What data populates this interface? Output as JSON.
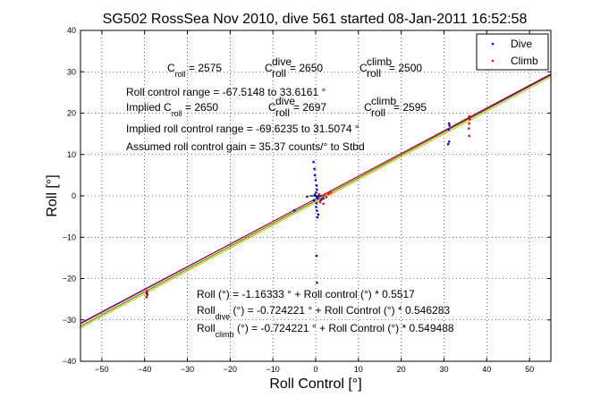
{
  "chart_data": {
    "type": "scatter",
    "title": "SG502 RossSea Nov 2010, dive 561 started 08-Jan-2011 16:52:58",
    "xlabel": "Roll Control [°]",
    "ylabel": "Roll [°]",
    "xlim": [
      -55,
      55
    ],
    "ylim": [
      -40,
      40
    ],
    "xticks": [
      -50,
      -40,
      -30,
      -20,
      -10,
      0,
      10,
      20,
      30,
      40,
      50
    ],
    "yticks": [
      -40,
      -30,
      -20,
      -10,
      0,
      10,
      20,
      30,
      40
    ],
    "grid": true,
    "legend_placement": "top-right",
    "series": [
      {
        "name": "Dive",
        "color": "#0000ff",
        "marker": "dot",
        "points": [
          [
            -39.5,
            -23.5
          ],
          [
            -39.4,
            -23.8
          ],
          [
            -0.5,
            8.2
          ],
          [
            -0.3,
            6.5
          ],
          [
            -0.2,
            5.0
          ],
          [
            0.0,
            3.8
          ],
          [
            0.2,
            2.5
          ],
          [
            0.3,
            1.5
          ],
          [
            0.1,
            0.8
          ],
          [
            -0.2,
            0.3
          ],
          [
            0.0,
            0.0
          ],
          [
            0.3,
            -0.3
          ],
          [
            0.5,
            -0.6
          ],
          [
            -0.4,
            -1.1
          ],
          [
            0.2,
            -1.8
          ],
          [
            0.1,
            -2.7
          ],
          [
            0.3,
            -3.6
          ],
          [
            0.6,
            -4.5
          ],
          [
            0.4,
            -5.2
          ],
          [
            0.2,
            -14.5
          ],
          [
            0.3,
            -21.0
          ],
          [
            1.2,
            -1.0
          ],
          [
            1.8,
            -0.6
          ],
          [
            -2.0,
            -0.2
          ],
          [
            -5.0,
            -3.5
          ],
          [
            31.0,
            12.5
          ],
          [
            31.2,
            13.1
          ],
          [
            31.1,
            16.0
          ],
          [
            31.3,
            17.0
          ],
          [
            31.2,
            17.5
          ]
        ]
      },
      {
        "name": "Climb",
        "color": "#ff0000",
        "marker": "dot",
        "points": [
          [
            -39.6,
            -24.5
          ],
          [
            -39.4,
            -24.0
          ],
          [
            -39.5,
            -23.0
          ],
          [
            1.0,
            -1.5
          ],
          [
            1.5,
            -0.8
          ],
          [
            2.0,
            0.2
          ],
          [
            2.5,
            -0.3
          ],
          [
            3.0,
            0.5
          ],
          [
            1.8,
            -1.9
          ],
          [
            0.8,
            0.4
          ],
          [
            3.5,
            0.8
          ],
          [
            35.8,
            16.3
          ],
          [
            35.9,
            17.5
          ],
          [
            36.0,
            18.5
          ],
          [
            35.9,
            19.2
          ],
          [
            35.9,
            14.5
          ]
        ]
      }
    ],
    "fit_lines": [
      {
        "label": "overall",
        "color": "#00aa00",
        "intercept": -1.16333,
        "slope": 0.5517
      },
      {
        "label": "dive",
        "color": "#0000ff",
        "intercept": -0.724221,
        "slope": 0.546283
      },
      {
        "label": "climb",
        "color": "#ff0000",
        "intercept": -0.724221,
        "slope": 0.549488
      },
      {
        "label": "center",
        "color": "#ffaa00",
        "intercept": -1.6,
        "slope": 0.5517
      }
    ],
    "annotations": {
      "c_roll": "C",
      "c_roll_sub": "roll",
      "c_roll_val": " = 2575",
      "c_dive": "C",
      "c_dive_sup": "dive",
      "c_dive_sub": "roll",
      "c_dive_val": " = 2650",
      "c_climb": "C",
      "c_climb_sup": "climb",
      "c_climb_sub": "roll",
      "c_climb_val": " = 2500",
      "range_line": "Roll control range = -67.5148 to 33.6161 °",
      "implied_c": "Implied C",
      "implied_c_sub": "roll",
      "implied_c_val": " = 2650",
      "implied_dive": "C",
      "implied_dive_sup": "dive",
      "implied_dive_sub": "roll",
      "implied_dive_val": " = 2697",
      "implied_climb": "C",
      "implied_climb_sup": "climb",
      "implied_climb_sub": "roll",
      "implied_climb_val": " = 2595",
      "implied_range": "Implied roll control range = -69.6235 to 31.5074 °",
      "gain": "Assumed roll control gain = 35.37 counts/° to Stbd",
      "fit_overall": "Roll (°) = -1.16333 ° + Roll control (°) * 0.5517",
      "fit_dive_a": "Roll",
      "fit_dive_sub": "dive",
      "fit_dive_b": " (°) = -0.724221 ° + Roll Control (°) * 0.546283",
      "fit_climb_a": "Roll",
      "fit_climb_sub": "climb",
      "fit_climb_b": " (°) = -0.724221 ° + Roll Control (°) * 0.549488"
    }
  }
}
